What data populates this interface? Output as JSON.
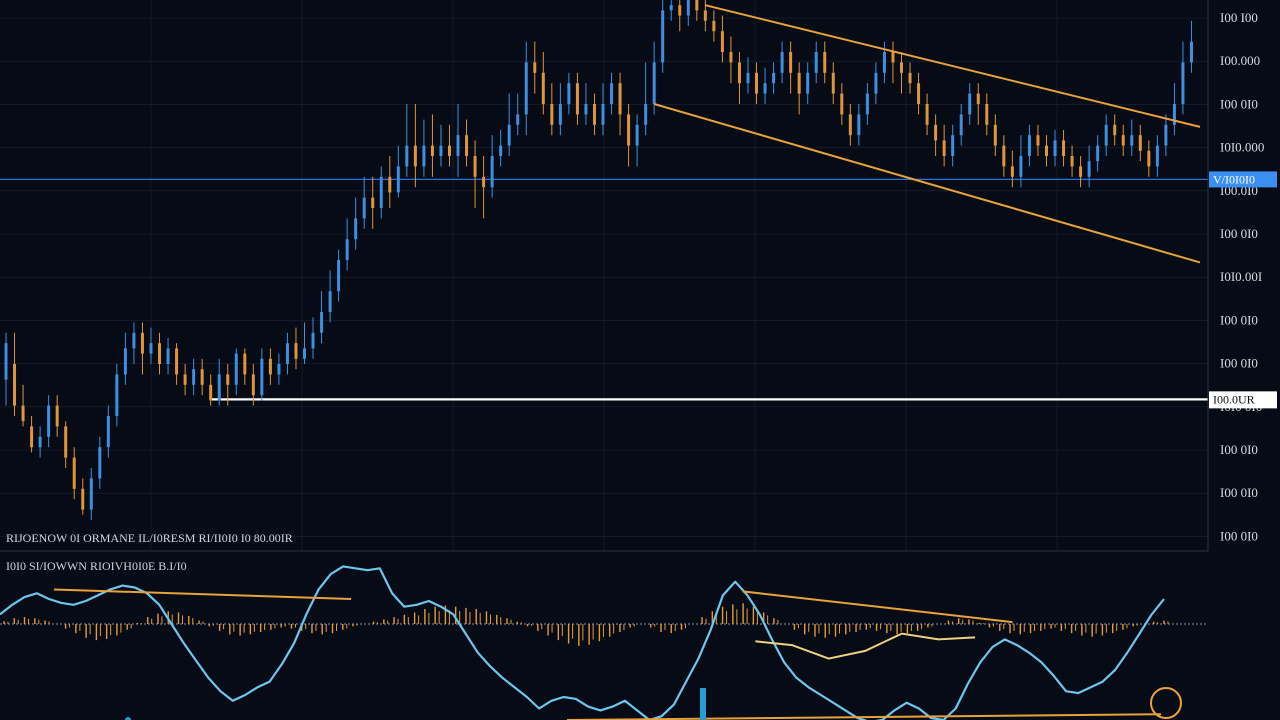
{
  "colors": {
    "background": "#060b16",
    "grid": "#1a2436",
    "up": "#3d8fe0",
    "down": "#e0953a",
    "trendline": "#e8a23c",
    "support": "#ffffff",
    "blue_hline": "#2b6fd6",
    "tag_blue_bg": "#3b8ff0",
    "tag_white_bg": "#ffffff",
    "oscillator_line": "#6cc6ec",
    "histogram_up": "#e39a3e",
    "histogram_down": "#e39a3e",
    "signal_line": "#f0d080"
  },
  "price_axis": {
    "labels": [
      "I00 I00",
      "I00.000",
      "I00 0I0",
      "I0I0.000",
      "I00.0I0",
      "I00 0I0",
      "I0I0.00I",
      "I00 0I0",
      "I00 0I0",
      "I0I0 0I0",
      "I00 0I0",
      "I00 0I0",
      "I00 0I0"
    ]
  },
  "tags": {
    "blue_tag": "V/I0I0I0",
    "white_tag": "I00.0UR"
  },
  "legends": {
    "price_legend": "RIJOENOW 0I ORMANE IL/I0RESM   RI/II0I0   I0 80.00IR",
    "indicator_legend": "I0I0   SI/IOWWN   RIOIVH0I0E   B.I/I0"
  },
  "chart_data": [
    {
      "type": "candlestick",
      "title": "",
      "xlabel": "",
      "ylabel": "",
      "grid": true,
      "ylim": [
        0,
        100
      ],
      "trendlines": [
        {
          "name": "",
          "points": [
            [
              83,
              99
            ],
            [
              140,
              76
            ]
          ]
        },
        {
          "name": "",
          "points": [
            [
              77,
              80
            ],
            [
              140,
              50
            ]
          ]
        }
      ],
      "horizontal_lines": [
        {
          "value": 65.5,
          "style": "blue"
        },
        {
          "value": 23.2,
          "style": "white"
        }
      ],
      "candles": [
        [
          1,
          27,
          34,
          36,
          22
        ],
        [
          2,
          30,
          22,
          36,
          20
        ],
        [
          3,
          22,
          19,
          26,
          18
        ],
        [
          4,
          18,
          14,
          20,
          13
        ],
        [
          5,
          14,
          16,
          18,
          12
        ],
        [
          6,
          16,
          22,
          24,
          14
        ],
        [
          7,
          22,
          18,
          24,
          16
        ],
        [
          8,
          18,
          12,
          19,
          10
        ],
        [
          9,
          12,
          6,
          14,
          4
        ],
        [
          10,
          6,
          2,
          8,
          1
        ],
        [
          11,
          2,
          8,
          10,
          0
        ],
        [
          12,
          8,
          14,
          16,
          6
        ],
        [
          13,
          14,
          20,
          22,
          12
        ],
        [
          14,
          20,
          28,
          30,
          18
        ],
        [
          15,
          28,
          33,
          36,
          26
        ],
        [
          16,
          33,
          36,
          38,
          30
        ],
        [
          17,
          36,
          32,
          38,
          28
        ],
        [
          18,
          32,
          34,
          37,
          30
        ],
        [
          19,
          34,
          30,
          36,
          28
        ],
        [
          20,
          30,
          33,
          35,
          28
        ],
        [
          21,
          33,
          28,
          34,
          26
        ],
        [
          22,
          28,
          26,
          30,
          24
        ],
        [
          23,
          26,
          29,
          31,
          24
        ],
        [
          24,
          29,
          26,
          31,
          24
        ],
        [
          25,
          26,
          23,
          28,
          22
        ],
        [
          26,
          23,
          28,
          31,
          22
        ],
        [
          27,
          28,
          26,
          30,
          22
        ],
        [
          28,
          26,
          32,
          33,
          24
        ],
        [
          29,
          32,
          28,
          33,
          26
        ],
        [
          30,
          28,
          24,
          30,
          22
        ],
        [
          31,
          24,
          31,
          33,
          23
        ],
        [
          32,
          31,
          28,
          33,
          26
        ],
        [
          33,
          28,
          30,
          32,
          26
        ],
        [
          34,
          30,
          34,
          36,
          28
        ],
        [
          35,
          34,
          31,
          37,
          29
        ],
        [
          36,
          31,
          33,
          38,
          30
        ],
        [
          37,
          33,
          36,
          39,
          31
        ],
        [
          38,
          36,
          40,
          44,
          34
        ],
        [
          39,
          40,
          44,
          48,
          38
        ],
        [
          40,
          44,
          50,
          52,
          42
        ],
        [
          41,
          50,
          54,
          58,
          48
        ],
        [
          42,
          54,
          58,
          62,
          52
        ],
        [
          43,
          58,
          62,
          66,
          56
        ],
        [
          44,
          62,
          60,
          66,
          56
        ],
        [
          45,
          60,
          66,
          68,
          58
        ],
        [
          46,
          66,
          63,
          70,
          60
        ],
        [
          47,
          63,
          68,
          72,
          62
        ],
        [
          48,
          68,
          72,
          80,
          66
        ],
        [
          49,
          72,
          68,
          80,
          64
        ],
        [
          50,
          68,
          72,
          77,
          66
        ],
        [
          51,
          72,
          70,
          78,
          66
        ],
        [
          52,
          70,
          72,
          76,
          68
        ],
        [
          53,
          72,
          70,
          76,
          68
        ],
        [
          54,
          70,
          74,
          80,
          66
        ],
        [
          55,
          74,
          70,
          77,
          68
        ],
        [
          56,
          70,
          66,
          73,
          60
        ],
        [
          57,
          66,
          64,
          70,
          58
        ],
        [
          58,
          64,
          70,
          74,
          62
        ],
        [
          59,
          70,
          72,
          75,
          68
        ],
        [
          60,
          72,
          76,
          82,
          70
        ],
        [
          61,
          76,
          78,
          82,
          74
        ],
        [
          62,
          78,
          88,
          92,
          74
        ],
        [
          63,
          88,
          86,
          92,
          82
        ],
        [
          64,
          86,
          80,
          90,
          78
        ],
        [
          65,
          80,
          76,
          84,
          74
        ],
        [
          66,
          76,
          80,
          84,
          74
        ],
        [
          67,
          80,
          84,
          86,
          78
        ],
        [
          68,
          84,
          78,
          86,
          76
        ],
        [
          69,
          78,
          80,
          84,
          76
        ],
        [
          70,
          80,
          76,
          82,
          74
        ],
        [
          71,
          76,
          80,
          84,
          74
        ],
        [
          72,
          80,
          84,
          86,
          78
        ],
        [
          73,
          84,
          78,
          86,
          74
        ],
        [
          74,
          78,
          72,
          80,
          68
        ],
        [
          75,
          72,
          76,
          78,
          68
        ],
        [
          76,
          76,
          80,
          88,
          74
        ],
        [
          77,
          80,
          88,
          92,
          78
        ],
        [
          78,
          88,
          98,
          100,
          86
        ],
        [
          79,
          98,
          99,
          100,
          96
        ],
        [
          80,
          99,
          97,
          100,
          94
        ],
        [
          81,
          97,
          100,
          100,
          95
        ],
        [
          82,
          100,
          98,
          100,
          96
        ],
        [
          83,
          98,
          96,
          100,
          94
        ],
        [
          84,
          96,
          94,
          98,
          92
        ],
        [
          85,
          94,
          90,
          97,
          88
        ],
        [
          86,
          90,
          88,
          93,
          84
        ],
        [
          87,
          88,
          84,
          90,
          80
        ],
        [
          88,
          84,
          86,
          89,
          82
        ],
        [
          89,
          86,
          82,
          88,
          80
        ],
        [
          90,
          82,
          84,
          87,
          80
        ],
        [
          91,
          84,
          86,
          88,
          82
        ],
        [
          92,
          86,
          90,
          92,
          84
        ],
        [
          93,
          90,
          86,
          92,
          82
        ],
        [
          94,
          86,
          82,
          88,
          78
        ],
        [
          95,
          82,
          86,
          88,
          80
        ],
        [
          96,
          86,
          90,
          92,
          84
        ],
        [
          97,
          90,
          86,
          92,
          84
        ],
        [
          98,
          86,
          82,
          88,
          80
        ],
        [
          99,
          82,
          78,
          84,
          76
        ],
        [
          100,
          78,
          74,
          80,
          72
        ],
        [
          101,
          74,
          78,
          80,
          72
        ],
        [
          102,
          78,
          82,
          84,
          76
        ],
        [
          103,
          82,
          86,
          88,
          80
        ],
        [
          104,
          86,
          90,
          92,
          84
        ],
        [
          105,
          90,
          88,
          92,
          84
        ],
        [
          106,
          88,
          86,
          90,
          82
        ],
        [
          107,
          86,
          84,
          88,
          82
        ],
        [
          108,
          84,
          80,
          86,
          78
        ],
        [
          109,
          80,
          76,
          82,
          74
        ],
        [
          110,
          76,
          73,
          78,
          70
        ],
        [
          111,
          73,
          70,
          76,
          68
        ],
        [
          112,
          70,
          74,
          76,
          68
        ],
        [
          113,
          74,
          78,
          80,
          72
        ],
        [
          114,
          78,
          82,
          84,
          76
        ],
        [
          115,
          82,
          80,
          84,
          76
        ],
        [
          116,
          80,
          76,
          82,
          74
        ],
        [
          117,
          76,
          72,
          78,
          70
        ],
        [
          118,
          72,
          68,
          74,
          66
        ],
        [
          119,
          68,
          66,
          71,
          64
        ],
        [
          120,
          66,
          70,
          74,
          64
        ],
        [
          121,
          70,
          74,
          76,
          68
        ],
        [
          122,
          74,
          72,
          76,
          70
        ],
        [
          123,
          72,
          70,
          74,
          68
        ],
        [
          124,
          70,
          73,
          75,
          68
        ],
        [
          125,
          73,
          70,
          75,
          68
        ],
        [
          126,
          70,
          68,
          72,
          66
        ],
        [
          127,
          68,
          66,
          70,
          64
        ],
        [
          128,
          66,
          69,
          72,
          64
        ],
        [
          129,
          69,
          72,
          74,
          67
        ],
        [
          130,
          72,
          76,
          78,
          70
        ],
        [
          131,
          76,
          74,
          78,
          72
        ],
        [
          132,
          74,
          72,
          76,
          70
        ],
        [
          133,
          72,
          74,
          77,
          70
        ],
        [
          134,
          74,
          71,
          76,
          69
        ],
        [
          135,
          71,
          68,
          73,
          66
        ],
        [
          136,
          68,
          72,
          74,
          66
        ],
        [
          137,
          72,
          76,
          78,
          70
        ],
        [
          138,
          76,
          80,
          84,
          74
        ],
        [
          139,
          80,
          88,
          92,
          78
        ],
        [
          140,
          88,
          92,
          96,
          86
        ]
      ]
    },
    {
      "type": "oscillator",
      "title": "",
      "zero_line": 0,
      "ylim": [
        -1,
        1
      ],
      "histogram": [
        0.05,
        0.1,
        0.12,
        0.1,
        0.06,
        0.0,
        -0.08,
        -0.16,
        -0.24,
        -0.28,
        -0.26,
        -0.2,
        -0.1,
        0.02,
        0.12,
        0.18,
        0.22,
        0.2,
        0.14,
        0.06,
        -0.04,
        -0.12,
        -0.18,
        -0.2,
        -0.18,
        -0.14,
        -0.1,
        -0.06,
        -0.08,
        -0.12,
        -0.16,
        -0.18,
        -0.16,
        -0.1,
        -0.04,
        0.0,
        0.04,
        0.08,
        0.12,
        0.16,
        0.2,
        0.26,
        0.3,
        0.32,
        0.3,
        0.28,
        0.26,
        0.22,
        0.16,
        0.1,
        0.04,
        -0.04,
        -0.12,
        -0.2,
        -0.28,
        -0.34,
        -0.38,
        -0.36,
        -0.3,
        -0.22,
        -0.14,
        -0.06,
        0.0,
        -0.06,
        -0.14,
        -0.16,
        -0.1,
        0.0,
        0.12,
        0.22,
        0.3,
        0.34,
        0.36,
        0.3,
        0.2,
        0.1,
        0.0,
        -0.1,
        -0.18,
        -0.22,
        -0.24,
        -0.22,
        -0.18,
        -0.14,
        -0.1,
        -0.12,
        -0.16,
        -0.18,
        -0.16,
        -0.12,
        -0.06,
        0.0,
        0.06,
        0.1,
        0.08,
        0.02,
        -0.06,
        -0.12,
        -0.16,
        -0.18,
        -0.16,
        -0.12,
        -0.08,
        -0.12,
        -0.16,
        -0.2,
        -0.22,
        -0.2,
        -0.16,
        -0.1,
        -0.04,
        0.0,
        0.04,
        0.06
      ],
      "line": [
        0.1,
        0.2,
        0.28,
        0.32,
        0.26,
        0.22,
        0.2,
        0.24,
        0.3,
        0.36,
        0.4,
        0.38,
        0.32,
        0.2,
        0.0,
        -0.2,
        -0.38,
        -0.56,
        -0.7,
        -0.8,
        -0.74,
        -0.66,
        -0.6,
        -0.42,
        -0.2,
        0.1,
        0.36,
        0.52,
        0.6,
        0.58,
        0.56,
        0.58,
        0.32,
        0.18,
        0.2,
        0.24,
        0.18,
        0.1,
        -0.1,
        -0.3,
        -0.44,
        -0.56,
        -0.66,
        -0.76,
        -0.88,
        -0.8,
        -0.76,
        -0.78,
        -0.86,
        -0.9,
        -0.86,
        -0.8,
        -0.9,
        -1.0,
        -0.96,
        -0.84,
        -0.6,
        -0.36,
        -0.06,
        0.3,
        0.44,
        0.3,
        0.1,
        -0.16,
        -0.4,
        -0.56,
        -0.66,
        -0.74,
        -0.82,
        -0.9,
        -0.98,
        -1.02,
        -1.0,
        -0.9,
        -0.82,
        -0.88,
        -0.98,
        -1.0,
        -0.88,
        -0.62,
        -0.4,
        -0.24,
        -0.16,
        -0.22,
        -0.3,
        -0.4,
        -0.54,
        -0.7,
        -0.72,
        -0.66,
        -0.6,
        -0.48,
        -0.3,
        -0.1,
        0.1,
        0.26
      ],
      "signal_line": [
        [
          57,
          -0.18
        ],
        [
          60,
          -0.22
        ],
        [
          63,
          -0.36
        ],
        [
          66,
          -0.28
        ],
        [
          69,
          -0.1
        ],
        [
          72,
          -0.16
        ],
        [
          75,
          -0.14
        ]
      ],
      "trendlines": [
        {
          "points": [
            [
              4,
              0.36
            ],
            [
              26,
              0.26
            ]
          ]
        },
        {
          "points": [
            [
              55,
              0.34
            ],
            [
              75,
              0.02
            ]
          ]
        },
        {
          "points": [
            [
              42,
              -1.0
            ],
            [
              86,
              -0.94
            ]
          ]
        }
      ]
    }
  ]
}
